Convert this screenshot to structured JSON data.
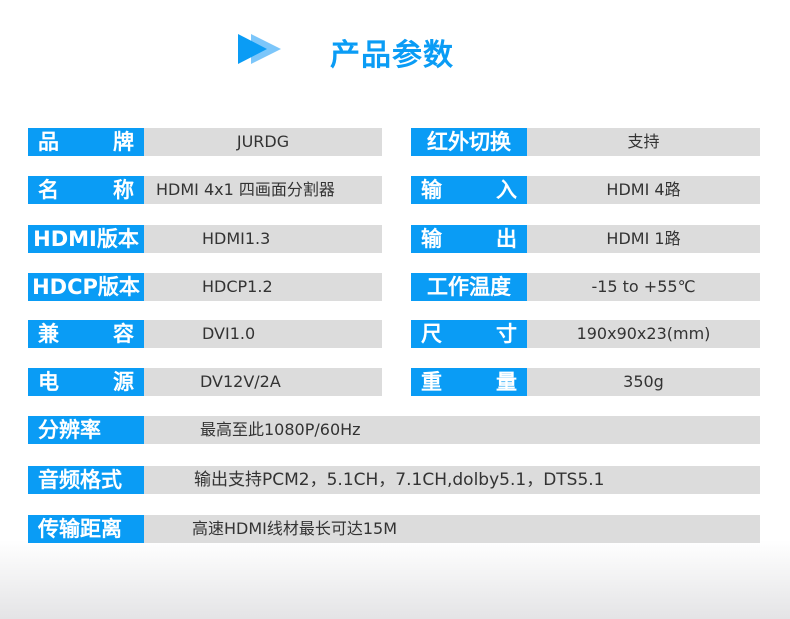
{
  "title": "产品参数",
  "accent": "#0a9cf5",
  "left": [
    {
      "label": [
        "品",
        "牌"
      ],
      "value": "JURDG"
    },
    {
      "label": [
        "名",
        "称"
      ],
      "value": "HDMI  4x1  四画面分割器"
    },
    {
      "label": [
        "HDMI版本"
      ],
      "value": "HDMI1.3"
    },
    {
      "label": [
        "HDCP版本"
      ],
      "value": "HDCP1.2"
    },
    {
      "label": [
        "兼",
        "容"
      ],
      "value": "DVI1.0"
    },
    {
      "label": [
        "电",
        "源"
      ],
      "value": "DV12V/2A"
    }
  ],
  "right": [
    {
      "label": [
        "红外切换"
      ],
      "value": "支持"
    },
    {
      "label": [
        "输",
        "入"
      ],
      "value": "HDMI 4路"
    },
    {
      "label": [
        "输",
        "出"
      ],
      "value": "HDMI 1路"
    },
    {
      "label": [
        "工作温度"
      ],
      "value": "-15 to +55℃"
    },
    {
      "label": [
        "尺",
        "寸"
      ],
      "value": "190x90x23(mm)"
    },
    {
      "label": [
        "重",
        "量"
      ],
      "value": "350g"
    }
  ],
  "full": [
    {
      "label": "分辨率",
      "value": "最高至此1080P/60Hz"
    },
    {
      "label": "音频格式",
      "value": "输出支持PCM2，5.1CH，7.1CH,dolby5.1，DTS5.1"
    },
    {
      "label": "传输距离",
      "value": "高速HDMI线材最长可达15M"
    }
  ]
}
